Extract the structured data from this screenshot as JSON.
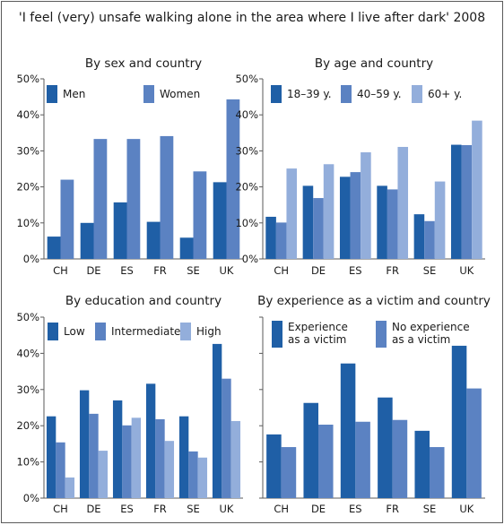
{
  "title": "'I feel (very) unsafe walking alone in the area where I live after dark' 2008",
  "colors": {
    "dark": "#1f5fa6",
    "medium": "#5b82c2",
    "light": "#93aedb",
    "axis": "#5a5a5a"
  },
  "chart_data": [
    {
      "type": "bar",
      "title": "By sex and country",
      "categories": [
        "CH",
        "DE",
        "ES",
        "FR",
        "SE",
        "UK"
      ],
      "ylim": [
        0,
        50
      ],
      "yticks": [
        "0%",
        "10%",
        "20%",
        "30%",
        "40%",
        "50%"
      ],
      "legend": "top",
      "series": [
        {
          "name": "Men",
          "color": "#1f5fa6",
          "values": [
            6.2,
            10,
            15.7,
            10.3,
            5.9,
            21.3
          ]
        },
        {
          "name": "Women",
          "color": "#5b82c2",
          "values": [
            22,
            33.3,
            33.3,
            34.1,
            24.3,
            44.3
          ]
        }
      ]
    },
    {
      "type": "bar",
      "title": "By age and country",
      "categories": [
        "CH",
        "DE",
        "ES",
        "FR",
        "SE",
        "UK"
      ],
      "ylim": [
        0,
        50
      ],
      "yticks": [
        "0%",
        "10%",
        "20%",
        "30%",
        "40%",
        "50%"
      ],
      "legend": "top",
      "series": [
        {
          "name": "18–39 y.",
          "color": "#1f5fa6",
          "values": [
            11.7,
            20.3,
            22.8,
            20.3,
            12.4,
            31.7
          ]
        },
        {
          "name": "40–59 y.",
          "color": "#5b82c2",
          "values": [
            10.1,
            16.9,
            24.1,
            19.3,
            10.5,
            31.6
          ]
        },
        {
          "name": "60+ y.",
          "color": "#93aedb",
          "values": [
            25.1,
            26.3,
            29.6,
            31.1,
            21.5,
            38.4
          ]
        }
      ]
    },
    {
      "type": "bar",
      "title": "By education and country",
      "categories": [
        "CH",
        "DE",
        "ES",
        "FR",
        "SE",
        "UK"
      ],
      "ylim": [
        0,
        50
      ],
      "yticks": [
        "0%",
        "10%",
        "20%",
        "30%",
        "40%",
        "50%"
      ],
      "legend": "top",
      "series": [
        {
          "name": "Low",
          "color": "#1f5fa6",
          "values": [
            22.6,
            29.8,
            27,
            31.6,
            22.6,
            42.6
          ]
        },
        {
          "name": "Intermediate",
          "color": "#5b82c2",
          "values": [
            15.4,
            23.3,
            20.1,
            21.8,
            12.9,
            33
          ]
        },
        {
          "name": "High",
          "color": "#93aedb",
          "values": [
            5.7,
            13.1,
            22.2,
            15.8,
            11.2,
            21.3
          ]
        }
      ]
    },
    {
      "type": "bar",
      "title": "By experience as a victim and country",
      "categories": [
        "CH",
        "DE",
        "ES",
        "FR",
        "SE",
        "UK"
      ],
      "ylim": [
        0,
        50
      ],
      "yticks": [],
      "legend": "top",
      "series": [
        {
          "name": "Experience as a victim",
          "color": "#1f5fa6",
          "values": [
            17.6,
            26.3,
            37.2,
            27.8,
            18.6,
            42.1
          ]
        },
        {
          "name": "No experience as a victim",
          "color": "#5b82c2",
          "values": [
            14.1,
            20.3,
            21.1,
            21.6,
            14.1,
            30.3
          ]
        }
      ]
    }
  ]
}
